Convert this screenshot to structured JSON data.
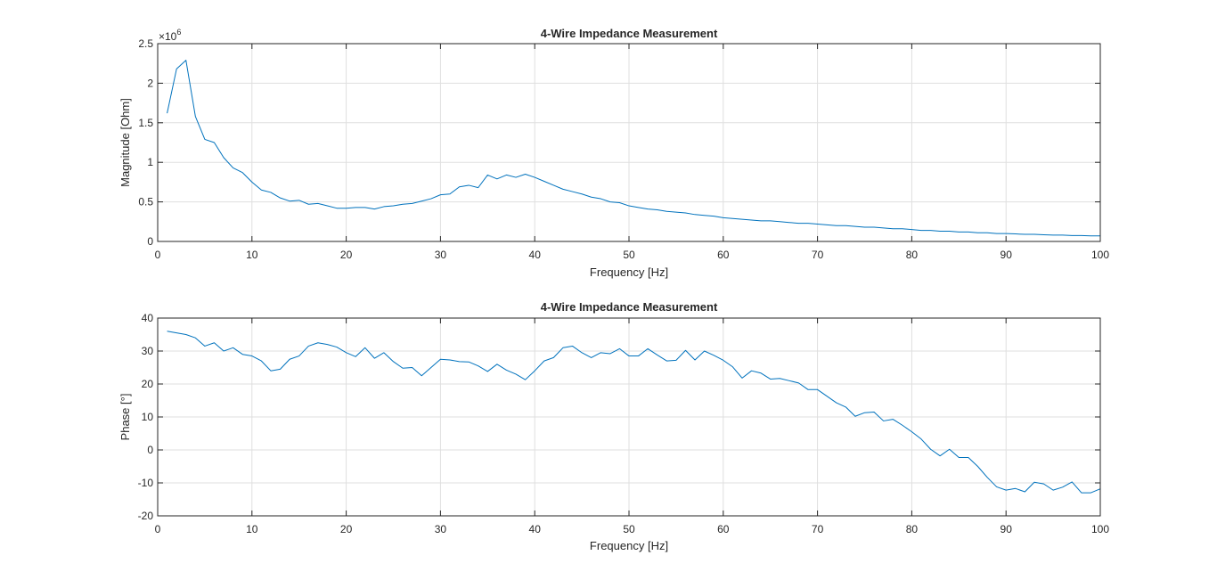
{
  "colors": {
    "line": "#0072BD",
    "axis": "#262626",
    "grid": "#dfdfdf",
    "background": "#ffffff"
  },
  "chart_data": [
    {
      "type": "line",
      "title": "4-Wire Impedance Measurement",
      "xlabel": "Frequency [Hz]",
      "ylabel": "Magnitude [Ohm]",
      "exponent_label": "×10",
      "exponent_power": "6",
      "xlim": [
        0,
        100
      ],
      "ylim": [
        0,
        2.5
      ],
      "y_scale_factor": 1000000,
      "grid": true,
      "xticks": [
        0,
        10,
        20,
        30,
        40,
        50,
        60,
        70,
        80,
        90,
        100
      ],
      "yticks": [
        0,
        0.5,
        1,
        1.5,
        2,
        2.5
      ],
      "xtick_labels": [
        "0",
        "10",
        "20",
        "30",
        "40",
        "50",
        "60",
        "70",
        "80",
        "90",
        "100"
      ],
      "ytick_labels": [
        "0",
        "0.5",
        "1",
        "1.5",
        "2",
        "2.5"
      ],
      "series": [
        {
          "x": [
            1,
            2,
            3,
            4,
            5,
            6,
            7,
            8,
            9,
            10,
            11,
            12,
            13,
            14,
            15,
            16,
            17,
            18,
            19,
            20,
            21,
            22,
            23,
            24,
            25,
            26,
            27,
            28,
            29,
            30,
            31,
            32,
            33,
            34,
            35,
            36,
            37,
            38,
            39,
            40,
            41,
            42,
            43,
            44,
            45,
            46,
            47,
            48,
            49,
            50,
            51,
            52,
            53,
            54,
            55,
            56,
            57,
            58,
            59,
            60,
            61,
            62,
            63,
            64,
            65,
            66,
            67,
            68,
            69,
            70,
            71,
            72,
            73,
            74,
            75,
            76,
            77,
            78,
            79,
            80,
            81,
            82,
            83,
            84,
            85,
            86,
            87,
            88,
            89,
            90,
            91,
            92,
            93,
            94,
            95,
            96,
            97,
            98,
            99,
            100
          ],
          "y": [
            1.62,
            2.18,
            2.29,
            1.58,
            1.29,
            1.25,
            1.06,
            0.93,
            0.87,
            0.75,
            0.65,
            0.62,
            0.55,
            0.51,
            0.52,
            0.47,
            0.48,
            0.45,
            0.42,
            0.42,
            0.43,
            0.43,
            0.41,
            0.44,
            0.45,
            0.47,
            0.48,
            0.51,
            0.54,
            0.59,
            0.6,
            0.69,
            0.71,
            0.68,
            0.84,
            0.79,
            0.84,
            0.81,
            0.85,
            0.81,
            0.76,
            0.71,
            0.66,
            0.63,
            0.6,
            0.56,
            0.54,
            0.5,
            0.49,
            0.45,
            0.43,
            0.41,
            0.4,
            0.38,
            0.37,
            0.36,
            0.34,
            0.33,
            0.32,
            0.3,
            0.29,
            0.28,
            0.27,
            0.26,
            0.26,
            0.25,
            0.24,
            0.23,
            0.23,
            0.22,
            0.21,
            0.2,
            0.2,
            0.19,
            0.18,
            0.18,
            0.17,
            0.16,
            0.16,
            0.15,
            0.14,
            0.14,
            0.13,
            0.13,
            0.12,
            0.12,
            0.11,
            0.11,
            0.1,
            0.1,
            0.095,
            0.09,
            0.09,
            0.085,
            0.08,
            0.08,
            0.075,
            0.075,
            0.07,
            0.07
          ]
        }
      ]
    },
    {
      "type": "line",
      "title": "4-Wire Impedance Measurement",
      "xlabel": "Frequency [Hz]",
      "ylabel": "Phase [°]",
      "xlim": [
        0,
        100
      ],
      "ylim": [
        -20,
        40
      ],
      "grid": true,
      "xticks": [
        0,
        10,
        20,
        30,
        40,
        50,
        60,
        70,
        80,
        90,
        100
      ],
      "yticks": [
        -20,
        -10,
        0,
        10,
        20,
        30,
        40
      ],
      "xtick_labels": [
        "0",
        "10",
        "20",
        "30",
        "40",
        "50",
        "60",
        "70",
        "80",
        "90",
        "100"
      ],
      "ytick_labels": [
        "-20",
        "-10",
        "0",
        "10",
        "20",
        "30",
        "40"
      ],
      "series": [
        {
          "x": [
            1,
            2,
            3,
            4,
            5,
            6,
            7,
            8,
            9,
            10,
            11,
            12,
            13,
            14,
            15,
            16,
            17,
            18,
            19,
            20,
            21,
            22,
            23,
            24,
            25,
            26,
            27,
            28,
            29,
            30,
            31,
            32,
            33,
            34,
            35,
            36,
            37,
            38,
            39,
            40,
            41,
            42,
            43,
            44,
            45,
            46,
            47,
            48,
            49,
            50,
            51,
            52,
            53,
            54,
            55,
            56,
            57,
            58,
            59,
            60,
            61,
            62,
            63,
            64,
            65,
            66,
            67,
            68,
            69,
            70,
            71,
            72,
            73,
            74,
            75,
            76,
            77,
            78,
            79,
            80,
            81,
            82,
            83,
            84,
            85,
            86,
            87,
            88,
            89,
            90,
            91,
            92,
            93,
            94,
            95,
            96,
            97,
            98,
            99,
            100
          ],
          "y": [
            36.0,
            35.5,
            35.0,
            34.0,
            31.5,
            32.5,
            30.0,
            31.0,
            29.0,
            28.5,
            27.0,
            24.0,
            24.5,
            27.5,
            28.5,
            31.5,
            32.5,
            32.0,
            31.2,
            29.5,
            28.3,
            31.0,
            27.8,
            29.5,
            26.8,
            24.8,
            25.0,
            22.5,
            25.0,
            27.5,
            27.3,
            26.8,
            26.7,
            25.5,
            23.8,
            26.0,
            24.2,
            23.0,
            21.3,
            24.0,
            27.0,
            28.0,
            31.0,
            31.5,
            29.5,
            28.0,
            29.5,
            29.2,
            30.7,
            28.5,
            28.5,
            30.7,
            28.8,
            27.0,
            27.2,
            30.2,
            27.3,
            30.0,
            28.7,
            27.2,
            25.2,
            21.8,
            24.0,
            23.3,
            21.5,
            21.7,
            21.0,
            20.3,
            18.3,
            18.3,
            16.3,
            14.3,
            13.0,
            10.2,
            11.3,
            11.5,
            8.8,
            9.3,
            7.5,
            5.5,
            3.3,
            0.2,
            -1.8,
            0.2,
            -2.3,
            -2.3,
            -5.0,
            -8.3,
            -11.2,
            -12.2,
            -11.7,
            -12.7,
            -9.8,
            -10.3,
            -12.2,
            -11.3,
            -9.7,
            -13.0,
            -13.0,
            -11.8
          ]
        }
      ]
    }
  ]
}
